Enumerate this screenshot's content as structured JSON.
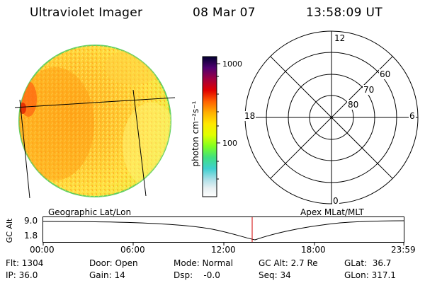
{
  "header": {
    "instrument": "Ultraviolet Imager",
    "date": "08 Mar 07",
    "time": "13:58:09 UT"
  },
  "colorbar": {
    "unit_label": "photon cm⁻²s⁻¹",
    "tick_1000": "1000",
    "tick_100": "100",
    "colors": [
      "#ffffff",
      "#b0e0e8",
      "#3fd0d0",
      "#40e080",
      "#80ff20",
      "#e0ff00",
      "#ffe800",
      "#ffb000",
      "#ff6000",
      "#e00000",
      "#a00040",
      "#500070",
      "#000030"
    ]
  },
  "polar_plot": {
    "mlt_12": "12",
    "mlt_18": "18",
    "mlt_6": "6",
    "mlt_0": "0",
    "lat_60": "60",
    "lat_70": "70",
    "lat_80": "80"
  },
  "captions": {
    "left": "Geographic Lat/Lon",
    "right": "Apex MLat/MLT"
  },
  "altitude_plot": {
    "y_title": "GC Alt",
    "y_tick_top": "9.0",
    "y_tick_bottom": "1.8",
    "x_ticks": [
      "00:00",
      "06:00",
      "12:00",
      "18:00",
      "23:59"
    ],
    "marker_color": "#d00000"
  },
  "footer": {
    "flt": "Flt: 1304",
    "ip": "IP: 36.0",
    "door": "Door: Open",
    "gain": "Gain: 14",
    "mode": "Mode: Normal",
    "dsp": "Dsp:    -0.0",
    "gc_alt": "GC Alt: 2.7 Re",
    "seq": "Seq: 34",
    "glat": "GLat:  36.7",
    "glon": "GLon: 317.1"
  }
}
